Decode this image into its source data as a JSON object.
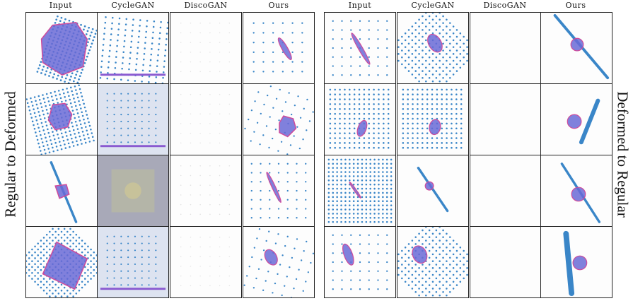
{
  "figure": {
    "headers_left": [
      "Input",
      "CycleGAN",
      "DiscoGAN",
      "Ours"
    ],
    "headers_right": [
      "Input",
      "CycleGAN",
      "DiscoGAN",
      "Ours"
    ],
    "label_left": "Regular to Deformed",
    "label_right": "Deformed to Regular"
  },
  "colors": {
    "dot": "#3a86c8",
    "shape_fill": "#6a6ad6",
    "shape_edge": "#d04a9a",
    "cyclegan_tint": "#dde3f0"
  }
}
